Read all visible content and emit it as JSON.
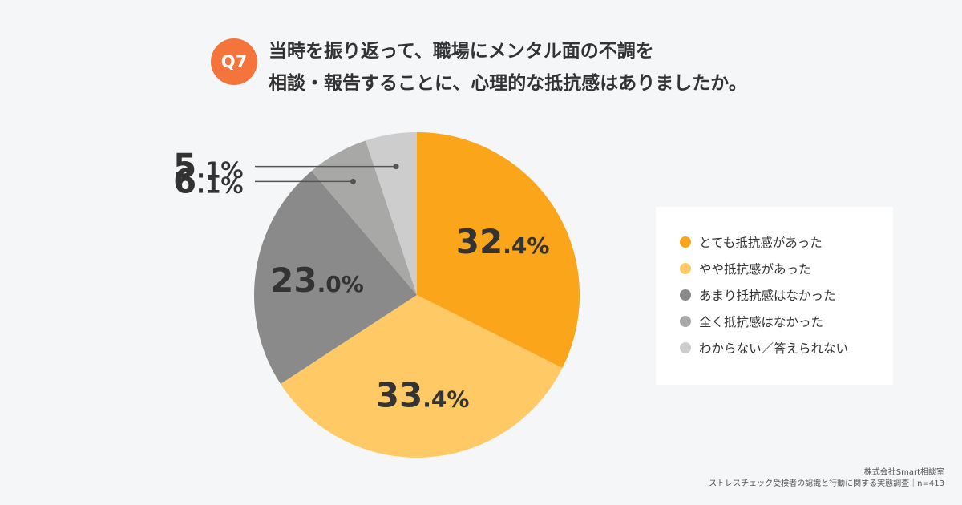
{
  "question": {
    "badge": "Q7",
    "line1": "当時を振り返って、職場にメンタル面の不調を",
    "line2": "相談・報告することに、心理的な抵抗感はありましたか。"
  },
  "chart_data": {
    "type": "pie",
    "title": "当時を振り返って、職場にメンタル面の不調を相談・報告することに、心理的な抵抗感はありましたか。",
    "categories": [
      "とても抵抗感があった",
      "やや抵抗感があった",
      "あまり抵抗感はなかった",
      "全く抵抗感はなかった",
      "わからない／答えられない"
    ],
    "values": [
      32.4,
      33.4,
      23.0,
      6.1,
      5.1
    ],
    "labels": [
      {
        "int": "32",
        "dec": ".4%"
      },
      {
        "int": "33",
        "dec": ".4%"
      },
      {
        "int": "23",
        "dec": ".0%"
      },
      {
        "int": "6",
        "dec": ".1%"
      },
      {
        "int": "5",
        "dec": ".1%"
      }
    ],
    "colors": [
      "#fba51a",
      "#ffc966",
      "#8a8a8a",
      "#a8a8a6",
      "#cdcdcd"
    ],
    "legend_position": "right"
  },
  "source": {
    "company": "株式会社Smart相談室",
    "survey": "ストレスチェック受検者の認識と行動に関する実態調査｜n=413"
  }
}
